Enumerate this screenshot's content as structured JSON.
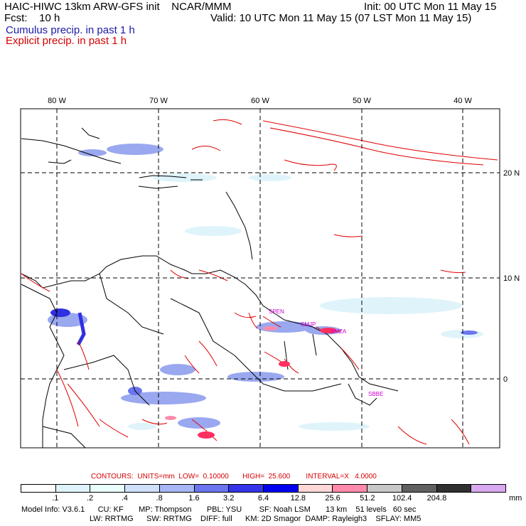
{
  "header": {
    "line1_left": "HAIC-HIWC 13km ARW-GFS init    NCAR/MMM",
    "line1_right": "Init: 00 UTC Mon 11 May 15",
    "line2_left": "Fcst:    10 h",
    "line2_right": "Valid: 10 UTC Mon 11 May 15 (07 LST Mon 11 May 15)",
    "line3": "Cumulus precip. in past 1 h",
    "line4": "Explicit precip. in past 1 h"
  },
  "map": {
    "lon_labels": [
      "80 W",
      "70 W",
      "60 W",
      "50 W",
      "40 W"
    ],
    "lat_labels": [
      "20 N",
      "10 N",
      "0"
    ],
    "stations": [
      "SPEN",
      "SMJP",
      "SMZA",
      "SBBE"
    ],
    "colors": {
      "coast": "#000000",
      "explicit": "#e00000",
      "cumulus_light": "#dff4fa",
      "cumulus_mid": "#9aa8f0",
      "cumulus_dark": "#3030e0",
      "station": "#d000d0"
    }
  },
  "contours_line": "CONTOURS:  UNITS=mm  LOW=  0.10000       HIGH=  25.600        INTERVAL=X   4.0000",
  "colorbar": {
    "labels": [
      ".1",
      ".2",
      ".4",
      ".8",
      "1.6",
      "3.2",
      "6.4",
      "12.8",
      "25.6",
      "51.2",
      "102.4",
      "204.8"
    ],
    "colors": [
      "#ffffff",
      "#ffffff",
      "#dff4fa",
      "#eafdfd",
      "#cfe0fa",
      "#a9b6f5",
      "#6b75ee",
      "#3434ea",
      "#0000f0",
      "#ffd7d7",
      "#ff8aaa",
      "#c8c8c8",
      "#606060",
      "#303030",
      "#d8a8f0"
    ],
    "units": "mm"
  },
  "footer": {
    "line1": "Model Info: V3.6.1      CU: KF       MP: Thompson       PBL: YSU        SF: Noah LSM       13 km    51 levels   60 sec",
    "line2": "LW: RRTMG      SW: RRTMG    DIFF: full      KM: 2D Smagor  DAMP: Rayleigh3    SFLAY: MM5"
  }
}
